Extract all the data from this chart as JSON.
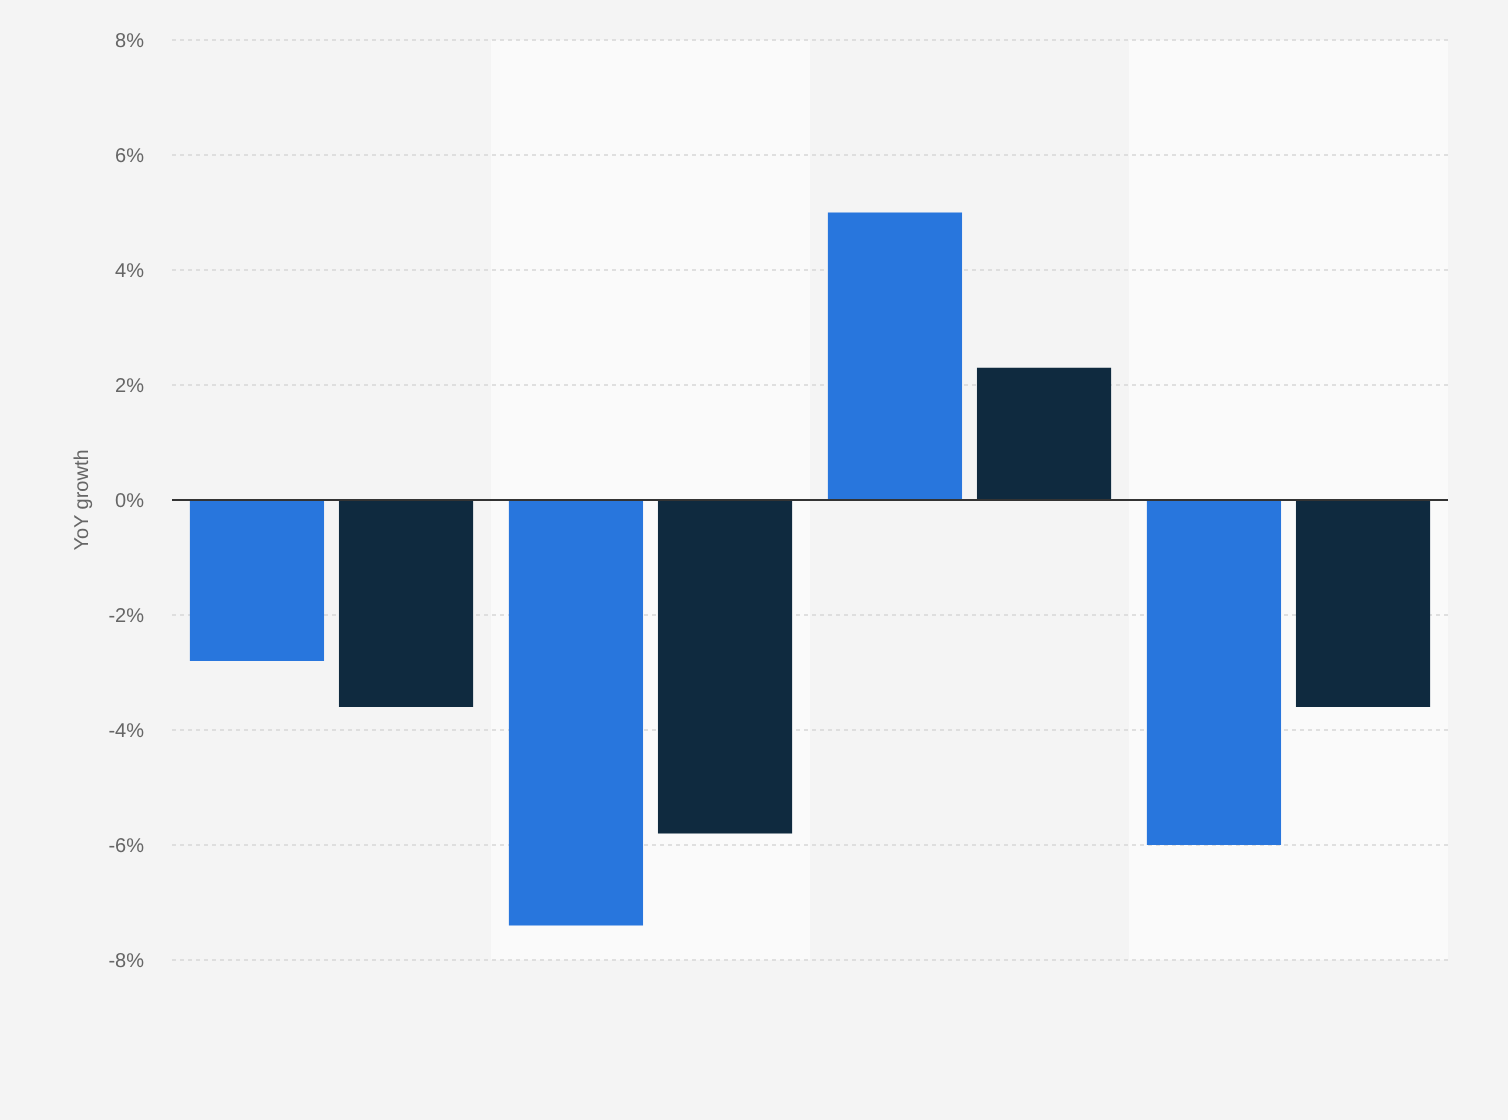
{
  "chart_data": {
    "type": "bar",
    "ylabel": "YoY growth",
    "categories": [
      null,
      null,
      null,
      null
    ],
    "series": [
      {
        "color": "#2876dd",
        "values": [
          -2.8,
          -7.4,
          5.0,
          -6.0
        ]
      },
      {
        "color": "#0f2a3f",
        "values": [
          -3.6,
          -5.8,
          2.3,
          -3.6
        ]
      }
    ],
    "ylim": [
      -8,
      8
    ],
    "yticks": [
      {
        "value": -8,
        "label": "-8%"
      },
      {
        "value": -6,
        "label": "-6%"
      },
      {
        "value": -4,
        "label": "-4%"
      },
      {
        "value": -2,
        "label": "-2%"
      },
      {
        "value": 0,
        "label": "0%"
      },
      {
        "value": 2,
        "label": "2%"
      },
      {
        "value": 4,
        "label": "4%"
      },
      {
        "value": 6,
        "label": "6%"
      },
      {
        "value": 8,
        "label": "8%"
      }
    ],
    "grid": "y"
  }
}
